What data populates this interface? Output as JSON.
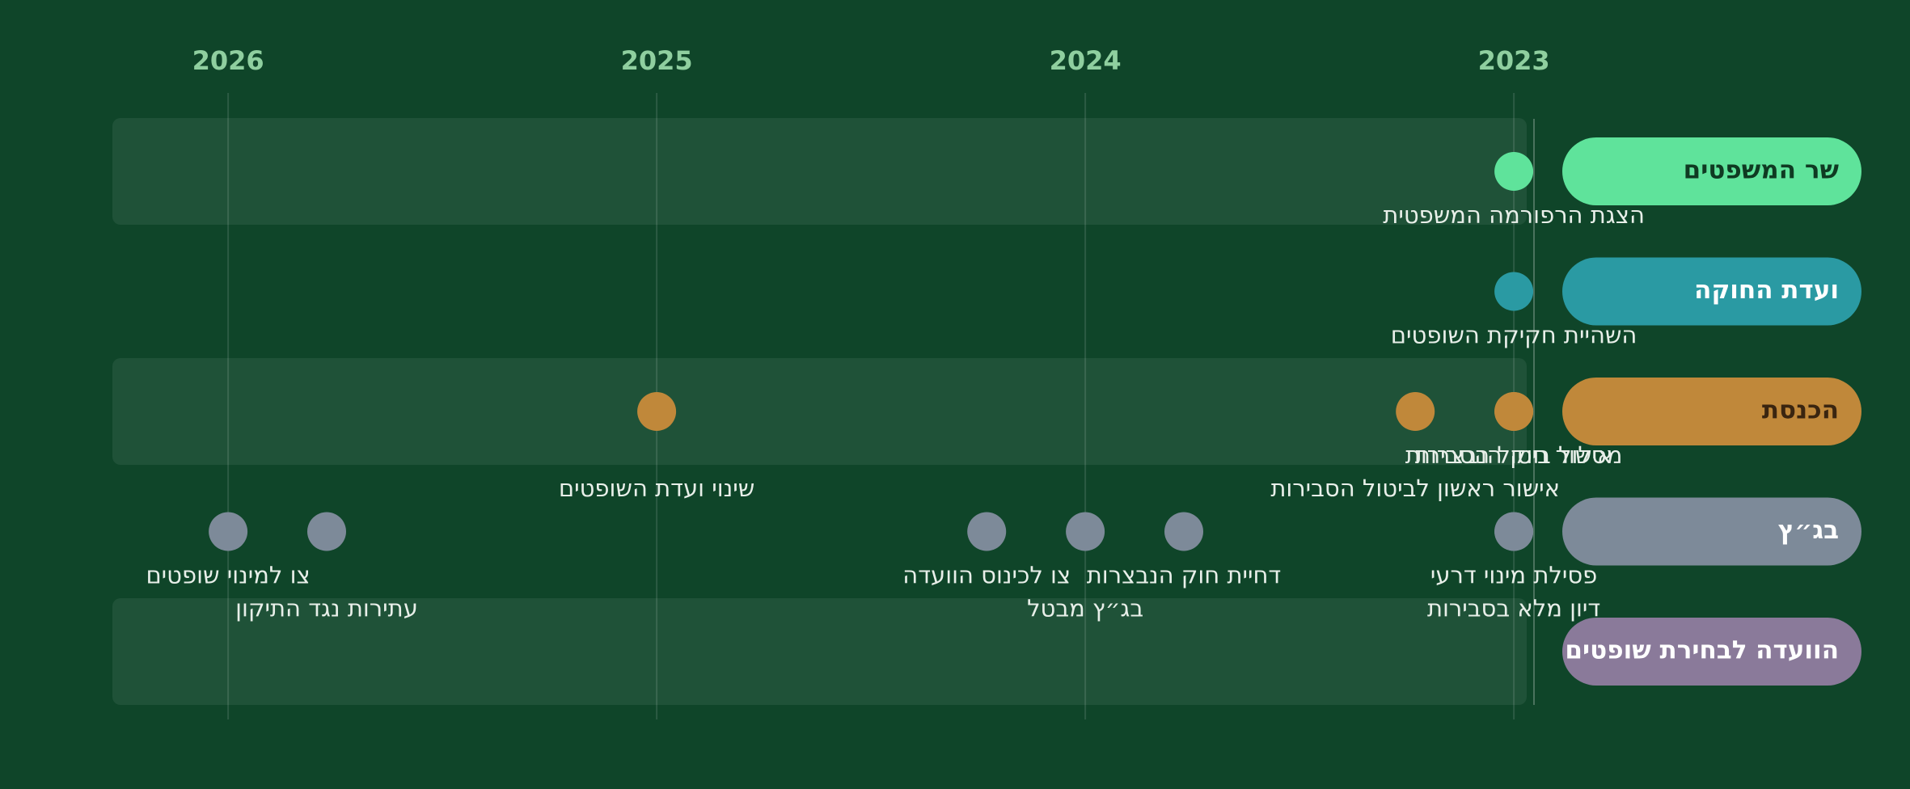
{
  "chart_data": {
    "type": "timeline",
    "xlim": [
      2022.97,
      2026.27
    ],
    "xticks": [
      2023,
      2024,
      2025,
      2026
    ],
    "grid": true,
    "series": [
      {
        "name": "שר המשפטים",
        "color": "#5fe39b",
        "text_color": "#0f3a22",
        "x": [
          2023.0
        ],
        "labels": [
          "הצגת הרפורמה המשפטית"
        ]
      },
      {
        "name": "ועדת החוקה",
        "color": "#2a9aa3",
        "text_color": "#ffffff",
        "x": [
          2023.0
        ],
        "labels": [
          "השהיית חקיקת השופטים"
        ]
      },
      {
        "name": "הכנסת",
        "color": "#c0883a",
        "text_color": "#3a2510",
        "x": [
          2023.0,
          2023.23,
          2023.0,
          2025.0
        ],
        "labels": [
          "מסלול ביטול הסבירות",
          "אישור ראשון לביטול הסבירות",
          "אישור חוק הנבצרות",
          "שינוי ועדת השופטים"
        ]
      },
      {
        "name": "בג״ץ",
        "color": "#7d8a99",
        "text_color": "#ffffff",
        "x": [
          2023.0,
          2023.0,
          2023.77,
          2024.0,
          2024.23,
          2025.77,
          2026.0
        ],
        "labels": [
          "פסילת מינוי דרעי",
          "דיון מלא בסבירות",
          "דחיית חוק הנבצרות",
          "בג״ץ מבטל",
          "צו לכינוס הוועדה",
          "עתירות נגד התיקון",
          "צו למינוי שופטים"
        ]
      },
      {
        "name": "הוועדה לבחירת שופטים",
        "color": "#8a7a9a",
        "text_color": "#ffffff",
        "x": [],
        "labels": []
      }
    ]
  }
}
